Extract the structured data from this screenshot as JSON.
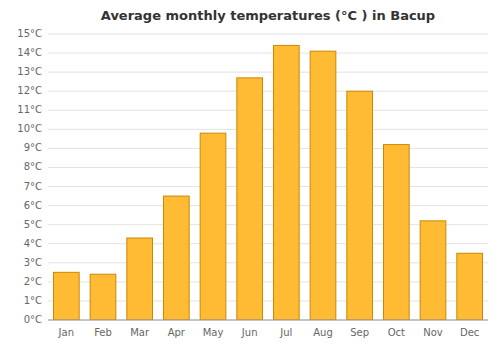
{
  "chart_data": {
    "type": "bar",
    "title": "Average monthly temperatures (°C ) in Bacup",
    "categories": [
      "Jan",
      "Feb",
      "Mar",
      "Apr",
      "May",
      "Jun",
      "Jul",
      "Aug",
      "Sep",
      "Oct",
      "Nov",
      "Dec"
    ],
    "values": [
      2.5,
      2.4,
      4.3,
      6.5,
      9.8,
      12.7,
      14.4,
      14.1,
      12.0,
      9.2,
      5.2,
      3.5
    ],
    "color": "#FFBB33",
    "ylim": [
      0,
      15
    ],
    "yticks": [
      {
        "value": 0,
        "label": "0°C"
      },
      {
        "value": 1,
        "label": "1°C"
      },
      {
        "value": 2,
        "label": "2°C"
      },
      {
        "value": 3,
        "label": "3°C"
      },
      {
        "value": 4,
        "label": "4°C"
      },
      {
        "value": 5,
        "label": "5°C"
      },
      {
        "value": 6,
        "label": "6°C"
      },
      {
        "value": 7,
        "label": "7°C"
      },
      {
        "value": 8,
        "label": "8°C"
      },
      {
        "value": 9,
        "label": "9°C"
      },
      {
        "value": 10,
        "label": "10°C"
      },
      {
        "value": 11,
        "label": "11°C"
      },
      {
        "value": 12,
        "label": "12°C"
      },
      {
        "value": 13,
        "label": "13°C"
      },
      {
        "value": 14,
        "label": "14°C"
      },
      {
        "value": 15,
        "label": "15°C"
      }
    ],
    "grid": true
  }
}
